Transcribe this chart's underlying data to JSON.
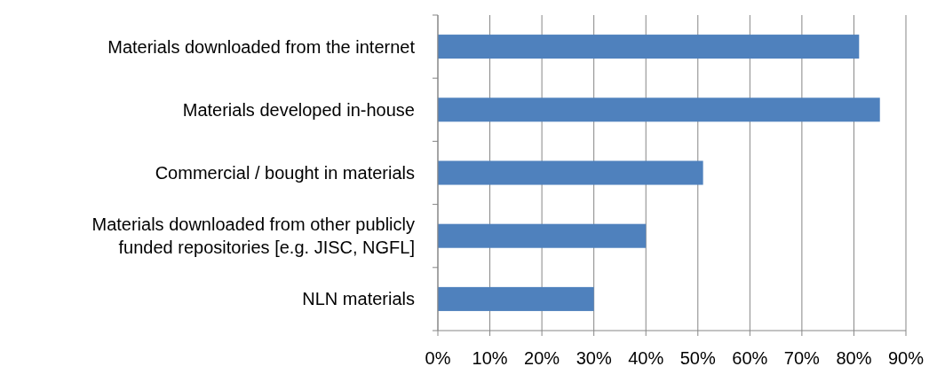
{
  "chart_data": {
    "type": "bar",
    "orientation": "horizontal",
    "categories": [
      "Materials downloaded from the internet",
      "Materials developed in-house",
      "Commercial / bought in materials",
      "Materials downloaded from other publicly funded repositories [e.g. JISC, NGFL]",
      "NLN materials"
    ],
    "values": [
      81,
      85,
      51,
      40,
      30
    ],
    "color": "#4f81bd",
    "xlim": [
      0,
      90
    ],
    "xticks": [
      {
        "value": 0,
        "label": "0%"
      },
      {
        "value": 10,
        "label": "10%"
      },
      {
        "value": 20,
        "label": "20%"
      },
      {
        "value": 30,
        "label": "30%"
      },
      {
        "value": 40,
        "label": "40%"
      },
      {
        "value": 50,
        "label": "50%"
      },
      {
        "value": 60,
        "label": "60%"
      },
      {
        "value": 70,
        "label": "70%"
      },
      {
        "value": 80,
        "label": "80%"
      },
      {
        "value": 90,
        "label": "90%"
      }
    ],
    "grid": "x"
  }
}
